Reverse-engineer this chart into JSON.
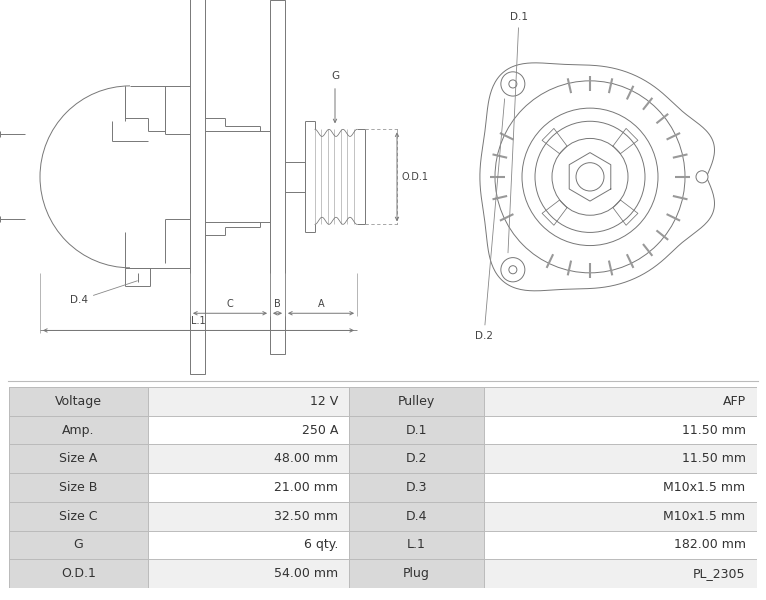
{
  "table_rows": [
    [
      "Voltage",
      "12 V",
      "Pulley",
      "AFP"
    ],
    [
      "Amp.",
      "250 A",
      "D.1",
      "11.50 mm"
    ],
    [
      "Size A",
      "48.00 mm",
      "D.2",
      "11.50 mm"
    ],
    [
      "Size B",
      "21.00 mm",
      "D.3",
      "M10x1.5 mm"
    ],
    [
      "Size C",
      "32.50 mm",
      "D.4",
      "M10x1.5 mm"
    ],
    [
      "G",
      "6 qty.",
      "L.1",
      "182.00 mm"
    ],
    [
      "O.D.1",
      "54.00 mm",
      "Plug",
      "PL_2305"
    ]
  ],
  "header_bg": "#d9d9d9",
  "row_bg_even": "#f0f0f0",
  "row_bg_odd": "#ffffff",
  "border_color": "#bbbbbb",
  "text_color": "#333333",
  "fig_bg": "#ffffff",
  "font_size_table": 9.0,
  "lc": "#777777",
  "lw": 0.7
}
